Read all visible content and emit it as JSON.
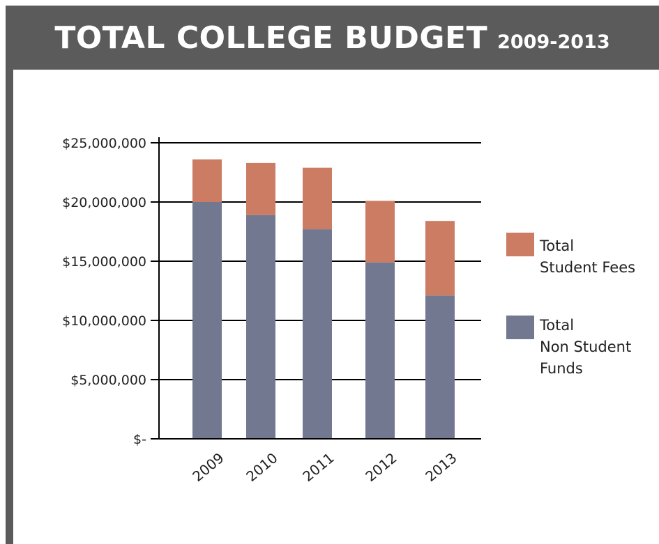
{
  "header": {
    "title": "TOTAL COLLEGE BUDGET",
    "subtitle": "2009-2013"
  },
  "colors": {
    "frame": "#5b5b5b",
    "student_fees": "#cc7c62",
    "non_student_funds": "#727890",
    "axis": "#000000"
  },
  "chart_data": {
    "type": "bar",
    "stacked": true,
    "title": "TOTAL COLLEGE BUDGET 2009-2013",
    "xlabel": "",
    "ylabel": "",
    "categories": [
      "2009",
      "2010",
      "2011",
      "2012",
      "2013"
    ],
    "series": [
      {
        "name": "Total Non Student Funds",
        "color": "#727890",
        "values": [
          20000000,
          18900000,
          17700000,
          14900000,
          12100000
        ]
      },
      {
        "name": "Total Student Fees",
        "color": "#cc7c62",
        "values": [
          3600000,
          4400000,
          5200000,
          5200000,
          6300000
        ]
      }
    ],
    "ylim": [
      0,
      25000000
    ],
    "yticks": [
      0,
      5000000,
      10000000,
      15000000,
      20000000,
      25000000
    ],
    "ytick_labels": [
      "$-",
      "$5,000,000",
      "$10,000,000",
      "$15,000,000",
      "$20,000,000",
      "$25,000,000"
    ],
    "grid": true,
    "legend": {
      "placement": "right",
      "entries": [
        {
          "series": "Total Student Fees",
          "lines": [
            "Total",
            "Student Fees"
          ]
        },
        {
          "series": "Total Non Student Funds",
          "lines": [
            "Total",
            "Non Student",
            "Funds"
          ]
        }
      ]
    }
  }
}
